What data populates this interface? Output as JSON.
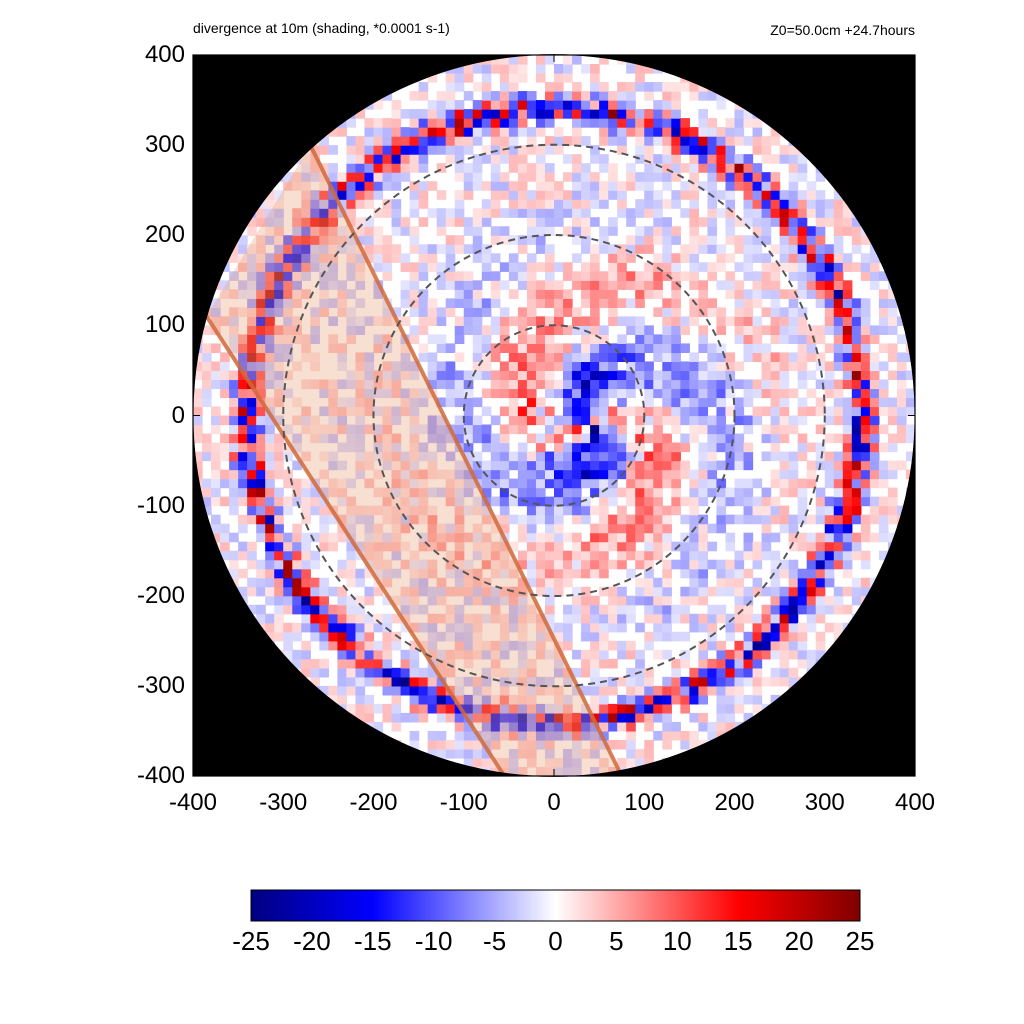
{
  "title_left": "divergence at 10m (shading, *0.0001 s-1)",
  "title_right": "Z0=50.0cm  +24.7hours",
  "chart_data": {
    "type": "heatmap",
    "title": "divergence at 10m (shading, *0.0001 s-1)",
    "annotation": "Z0=50.0cm  +24.7hours",
    "xlim": [
      -400,
      400
    ],
    "ylim": [
      -400,
      400
    ],
    "x_ticks": [
      -400,
      -300,
      -200,
      -100,
      0,
      100,
      200,
      300,
      400
    ],
    "y_ticks": [
      -400,
      -300,
      -200,
      -100,
      0,
      100,
      200,
      300,
      400
    ],
    "x_tick_labels": [
      "-400",
      "-300",
      "-200",
      "-100",
      "0",
      "100",
      "200",
      "300",
      "400"
    ],
    "y_tick_labels": [
      "400",
      "300",
      "200",
      "100",
      "0",
      "-100",
      "-200",
      "-300",
      "-400"
    ],
    "domain_radius": 400,
    "background_color": "#000000",
    "dashed_circle_radii": [
      100,
      200,
      300
    ],
    "shaded_band": {
      "color": "#e8a27a",
      "edge_color": "#d06a3a",
      "boundary_lines": [
        [
          [
            -270,
            300
          ],
          [
            75,
            -400
          ]
        ],
        [
          [
            -385,
            110
          ],
          [
            -55,
            -400
          ]
        ]
      ]
    },
    "colorbar": {
      "colormap": "blue-white-red",
      "range": [
        -25,
        25
      ],
      "ticks": [
        -25,
        -20,
        -15,
        -10,
        -5,
        0,
        5,
        10,
        15,
        20,
        25
      ],
      "tick_labels": [
        "-25",
        "-20",
        "-15",
        "-10",
        "-5",
        "0",
        "5",
        "10",
        "15",
        "20",
        "25"
      ]
    },
    "features": {
      "outer_convergence_ring_radius": 340,
      "inner_spiral_bands": true,
      "eye_center": [
        40,
        -10
      ]
    }
  }
}
